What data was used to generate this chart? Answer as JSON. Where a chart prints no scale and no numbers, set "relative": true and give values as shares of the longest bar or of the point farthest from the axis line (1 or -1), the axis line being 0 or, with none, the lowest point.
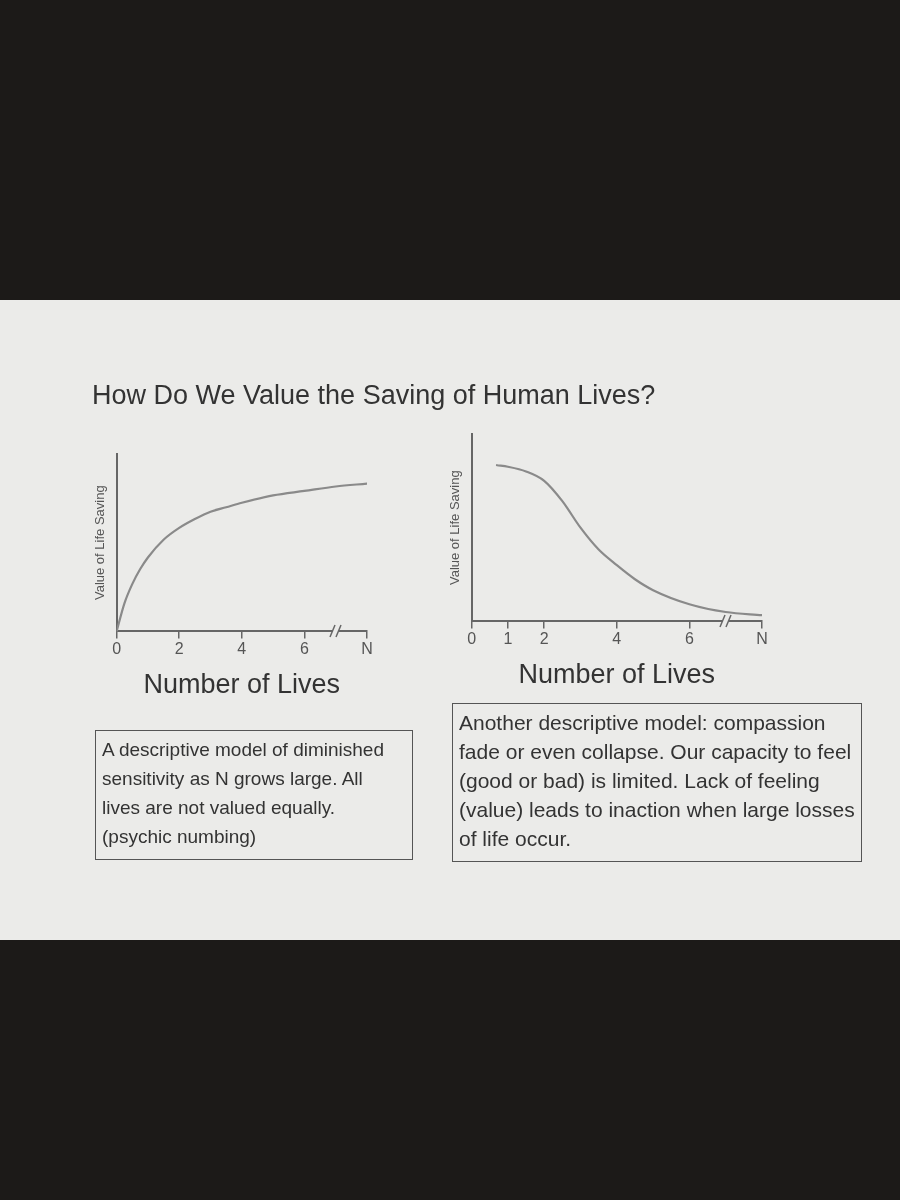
{
  "chart_data": [
    {
      "type": "line",
      "title": "How Do We Value the Saving of Human Lives?",
      "xlabel": "Number of Lives",
      "ylabel": "Value of Life Saving",
      "relative": true,
      "color": "#8a8a8a",
      "marker": "none",
      "line_style": "solid",
      "grid": false,
      "legend": false,
      "x": [
        0,
        0.25,
        0.5,
        0.75,
        1,
        1.5,
        2,
        2.5,
        3,
        3.5,
        4,
        5,
        6,
        7,
        8
      ],
      "values": [
        0,
        0.19,
        0.32,
        0.42,
        0.5,
        0.62,
        0.7,
        0.76,
        0.81,
        0.84,
        0.87,
        0.92,
        0.95,
        0.98,
        1
      ],
      "xlim": [
        0,
        8
      ],
      "xticks": [
        0,
        2,
        4,
        6,
        {
          "value": 8,
          "label": "N"
        }
      ],
      "annotations": [
        "A descriptive model of diminished sensitivity as N grows large. All lives are not valued equally. (psychic numbing)"
      ]
    },
    {
      "type": "line",
      "xlabel": "Number of Lives",
      "ylabel": "Value of Life Saving",
      "relative": true,
      "color": "#8a8a8a",
      "marker": "none",
      "line_style": "solid",
      "grid": false,
      "legend": false,
      "x": [
        0.7,
        1,
        1.5,
        2,
        2.5,
        3,
        3.5,
        4,
        4.5,
        5,
        6,
        7,
        8
      ],
      "values": [
        1,
        0.99,
        0.96,
        0.9,
        0.77,
        0.6,
        0.46,
        0.36,
        0.27,
        0.2,
        0.11,
        0.06,
        0.04
      ],
      "xlim": [
        0,
        8
      ],
      "xticks": [
        0,
        1,
        2,
        4,
        6,
        {
          "value": 8,
          "label": "N"
        }
      ],
      "annotations": [
        "Another descriptive model: compassion fade or even collapse. Our capacity to feel (good or bad) is limited. Lack of feeling (value) leads to inaction when large losses of life occur."
      ]
    }
  ]
}
